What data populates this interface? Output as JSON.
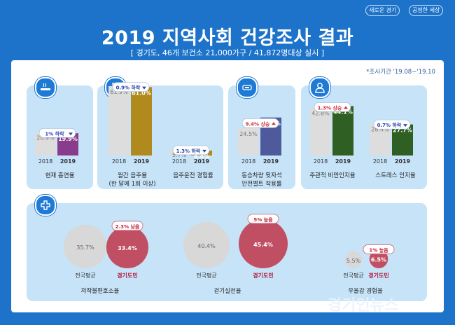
{
  "header": {
    "tags": [
      "새로운 경기",
      "공정한 세상"
    ],
    "title": "2019 지역사회 건강조사 결과",
    "subtitle": "[ 경기도, 46개 보건소 21,000가구 / 41,872명대상 실시 ]",
    "period": "*조사기간 '19.08~'19.10"
  },
  "logo": "경기인뉴스",
  "colors": {
    "background": "#1d73c9",
    "panel": "#c6e3f8",
    "bar_2018": "#dddddd",
    "smoking_2019": "#8a3c8c",
    "drinking_2019": "#b08a1c",
    "seatbelt_2019": "#4e5a9c",
    "obesity_2019": "#2f5f22",
    "gyeonggi_bubble": "#c14f63",
    "national_bubble": "#d8d8d8",
    "decrease_arrow": "#2f47b0",
    "increase_arrow": "#d32f2f"
  },
  "sections": [
    {
      "icon": "cigarette-icon"
    },
    {
      "icon": "wine-glass-icon"
    },
    {
      "icon": "seatbelt-icon"
    },
    {
      "icon": "person-icon"
    },
    {
      "icon": "plus-icon"
    }
  ],
  "chart_data": [
    {
      "type": "bar",
      "categories": [
        "2018",
        "2019"
      ],
      "values": [
        20.9,
        19.9
      ],
      "value_labels": [
        "20.9%",
        "19.9%"
      ],
      "change": "1% 하락",
      "direction": "down",
      "caption": [
        "현재 흡연율"
      ]
    },
    {
      "type": "bar",
      "categories": [
        "2018",
        "2019"
      ],
      "values": [
        61.9,
        61.0
      ],
      "value_labels": [
        "61.9%",
        "61.0%"
      ],
      "change": "0.9% 하락",
      "direction": "down",
      "caption": [
        "월간 음주율",
        "(한 달에 1회 이상)"
      ]
    },
    {
      "type": "bar",
      "categories": [
        "2018",
        "2019"
      ],
      "values": [
        5.7,
        4.4
      ],
      "value_labels": [
        "5.7%",
        "4.4%"
      ],
      "change": "1.3% 하락",
      "direction": "down",
      "caption": [
        "음주운전 경험률"
      ]
    },
    {
      "type": "bar",
      "categories": [
        "2018",
        "2019"
      ],
      "values": [
        24.5,
        33.9
      ],
      "value_labels": [
        "24.5%",
        "33.9%"
      ],
      "change": "9.4% 상승",
      "direction": "up",
      "caption": [
        "동승차량 뒷자석",
        "안전벨트 착용률"
      ]
    },
    {
      "type": "bar",
      "categories": [
        "2018",
        "2019"
      ],
      "values": [
        42.8,
        44.1
      ],
      "value_labels": [
        "42.8%",
        "44.1%"
      ],
      "change": "1.3% 상승",
      "direction": "up",
      "caption": [
        "주관적 비만인지율"
      ]
    },
    {
      "type": "bar",
      "categories": [
        "2018",
        "2019"
      ],
      "values": [
        28.4,
        27.7
      ],
      "value_labels": [
        "28.4%",
        "27.7%"
      ],
      "change": "0.7% 하락",
      "direction": "down",
      "caption": [
        "스트레스 인지율"
      ]
    },
    {
      "type": "bubble",
      "categories": [
        "전국평균",
        "경기도민"
      ],
      "values": [
        35.7,
        33.4
      ],
      "value_labels": [
        "35.7%",
        "33.4%"
      ],
      "change": "2.3% 낮음",
      "caption": [
        "저작불편호소율"
      ]
    },
    {
      "type": "bubble",
      "categories": [
        "전국평균",
        "경기도민"
      ],
      "values": [
        40.4,
        45.4
      ],
      "value_labels": [
        "40.4%",
        "45.4%"
      ],
      "change": "5% 높음",
      "caption": [
        "걷기실천율"
      ]
    },
    {
      "type": "bubble",
      "categories": [
        "전국평균",
        "경기도민"
      ],
      "values": [
        5.5,
        6.5
      ],
      "value_labels": [
        "5.5%",
        "6.5%"
      ],
      "change": "1% 높음",
      "caption": [
        "우울감 경험율"
      ]
    }
  ]
}
